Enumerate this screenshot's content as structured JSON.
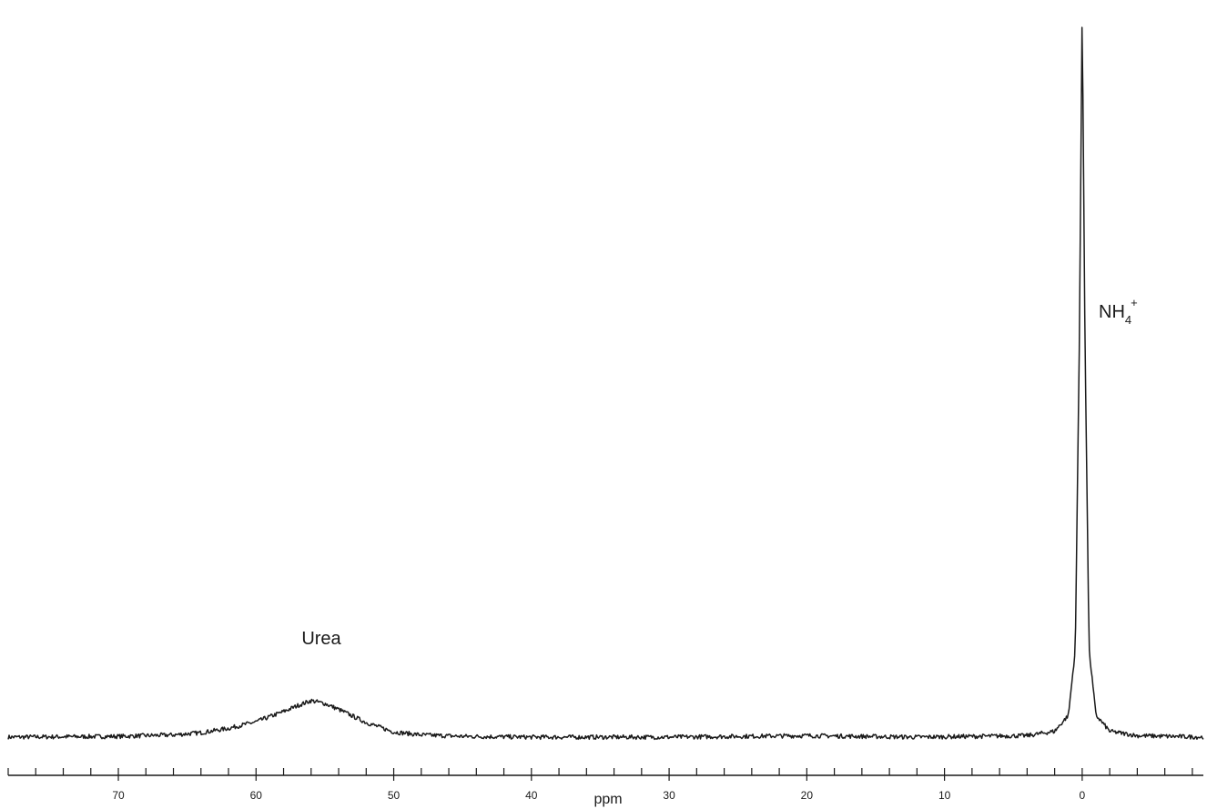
{
  "chart_data": {
    "type": "line",
    "xlabel": "ppm",
    "ylabel": "",
    "x_reversed": true,
    "xlim": [
      78.0,
      -8.8
    ],
    "ylim": [
      -0.02,
      1.0
    ],
    "x_major_ticks": [
      70,
      60,
      50,
      40,
      30,
      20,
      10,
      0
    ],
    "x_minor_step": 2,
    "grid": false,
    "legend": "none",
    "line_color": "#1a1a1a",
    "peaks": [
      {
        "label": "Urea",
        "center_ppm": 56.0,
        "relative_intensity": 0.05
      },
      {
        "label": "NH4+",
        "label_main": "NH",
        "label_sub": "4",
        "label_sup": "+",
        "center_ppm": 0.0,
        "relative_intensity": 1.0
      }
    ],
    "series": [
      {
        "x": [
          78,
          70,
          66,
          64,
          62,
          60,
          58,
          57,
          56,
          55,
          54,
          52,
          50,
          48,
          45,
          40,
          30,
          20,
          12,
          4,
          2,
          1,
          0.5,
          0.2,
          0,
          -0.2,
          -0.5,
          -1,
          -2,
          -4,
          -8.8
        ],
        "values": [
          0.0,
          0.001,
          0.003,
          0.006,
          0.012,
          0.021,
          0.035,
          0.043,
          0.05,
          0.046,
          0.038,
          0.02,
          0.007,
          0.003,
          0.001,
          0.0,
          0.0,
          0.002,
          0.0,
          0.002,
          0.008,
          0.03,
          0.12,
          0.55,
          1.0,
          0.55,
          0.12,
          0.03,
          0.008,
          0.002,
          0.0
        ]
      }
    ]
  }
}
